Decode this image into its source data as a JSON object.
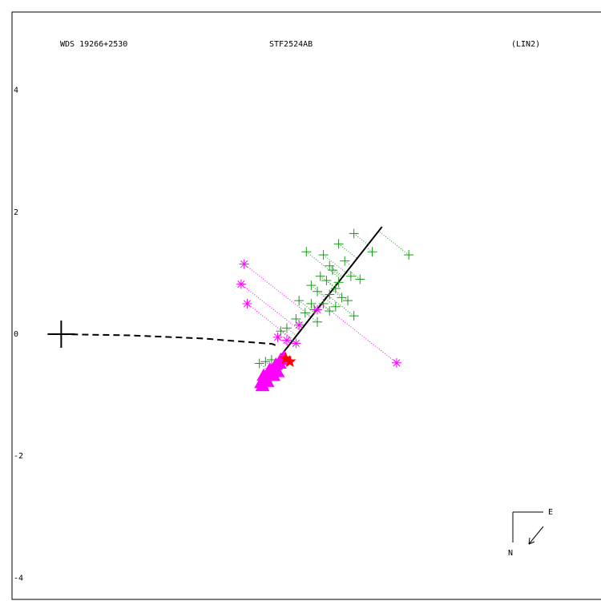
{
  "header": {
    "left": "WDS 19266+2530",
    "center": "STF2524AB",
    "right": "(LIN2)"
  },
  "compass": {
    "east": "E",
    "north": "N"
  },
  "colors": {
    "frame": "#000000",
    "micrometer": "#1a9a1a",
    "interferometric": "#ff00ff",
    "speckle": "#ff00ff",
    "recent": "#ff0000",
    "fit_line": "#000000",
    "residual_green": "#1a9a1a",
    "residual_magenta": "#ff00ff"
  },
  "chart_data": {
    "type": "scatter",
    "title": "",
    "xlabel": "",
    "ylabel": "",
    "xlim": [
      -5.0,
      4.6
    ],
    "ylim": [
      -4.3,
      5.3
    ],
    "y_ticks": [
      {
        "value": 4,
        "label": "4"
      },
      {
        "value": 2,
        "label": "2"
      },
      {
        "value": 0,
        "label": "0"
      },
      {
        "value": -2,
        "label": "-2"
      },
      {
        "value": -4,
        "label": "-4"
      }
    ],
    "primary": [
      -4.2,
      0.0
    ],
    "linear_fit": [
      [
        -0.99,
        -0.85
      ],
      [
        1.06,
        1.76
      ]
    ],
    "separation_line": [
      [
        -4.2,
        0.0
      ],
      [
        -3.07,
        -0.02
      ],
      [
        -1.89,
        -0.07
      ],
      [
        -0.74,
        -0.16
      ],
      [
        -0.64,
        -0.2
      ]
    ],
    "series": [
      {
        "marker": "plus",
        "points": [
          [
            -0.18,
            1.35
          ],
          [
            0.35,
            1.48
          ],
          [
            0.6,
            1.65
          ],
          [
            0.1,
            1.3
          ],
          [
            0.2,
            1.12
          ],
          [
            0.45,
            1.2
          ],
          [
            0.9,
            1.35
          ],
          [
            0.05,
            0.95
          ],
          [
            -0.1,
            0.8
          ],
          [
            0.15,
            0.88
          ],
          [
            0.3,
            0.75
          ],
          [
            0.55,
            0.95
          ],
          [
            0.7,
            0.9
          ],
          [
            0.0,
            0.7
          ],
          [
            0.2,
            0.65
          ],
          [
            0.4,
            0.6
          ],
          [
            -0.3,
            0.55
          ],
          [
            -0.1,
            0.5
          ],
          [
            0.1,
            0.5
          ],
          [
            0.3,
            0.45
          ],
          [
            0.5,
            0.55
          ],
          [
            -0.05,
            0.4
          ],
          [
            0.2,
            0.38
          ],
          [
            0.6,
            0.3
          ],
          [
            -0.2,
            0.35
          ],
          [
            -0.35,
            0.25
          ],
          [
            -0.6,
            0.05
          ],
          [
            -0.5,
            0.1
          ],
          [
            0.0,
            0.2
          ],
          [
            1.5,
            1.3
          ],
          [
            -0.95,
            -0.48
          ],
          [
            -0.85,
            -0.45
          ],
          [
            -0.75,
            -0.42
          ],
          [
            0.25,
            1.05
          ],
          [
            0.35,
            0.85
          ]
        ]
      },
      {
        "marker": "asterisk",
        "points": [
          [
            -1.2,
            1.15
          ],
          [
            -1.25,
            0.82
          ],
          [
            -1.15,
            0.5
          ],
          [
            1.3,
            -0.47
          ],
          [
            -0.65,
            -0.05
          ],
          [
            -0.35,
            -0.15
          ],
          [
            -0.5,
            -0.1
          ],
          [
            0.0,
            0.4
          ],
          [
            -0.3,
            0.15
          ]
        ]
      },
      {
        "marker": "triangle",
        "points": [
          [
            -0.92,
            -0.8
          ],
          [
            -0.85,
            -0.72
          ],
          [
            -0.8,
            -0.65
          ],
          [
            -0.75,
            -0.6
          ],
          [
            -0.7,
            -0.55
          ],
          [
            -0.68,
            -0.5
          ],
          [
            -0.62,
            -0.48
          ],
          [
            -0.9,
            -0.85
          ],
          [
            -0.82,
            -0.78
          ],
          [
            -0.72,
            -0.68
          ],
          [
            -0.6,
            -0.42
          ],
          [
            -0.55,
            -0.38
          ],
          [
            -0.78,
            -0.58
          ],
          [
            -0.65,
            -0.62
          ],
          [
            -0.88,
            -0.68
          ]
        ]
      },
      {
        "marker": "star",
        "points": [
          [
            -0.45,
            -0.45
          ],
          [
            -0.52,
            -0.4
          ]
        ]
      }
    ]
  }
}
